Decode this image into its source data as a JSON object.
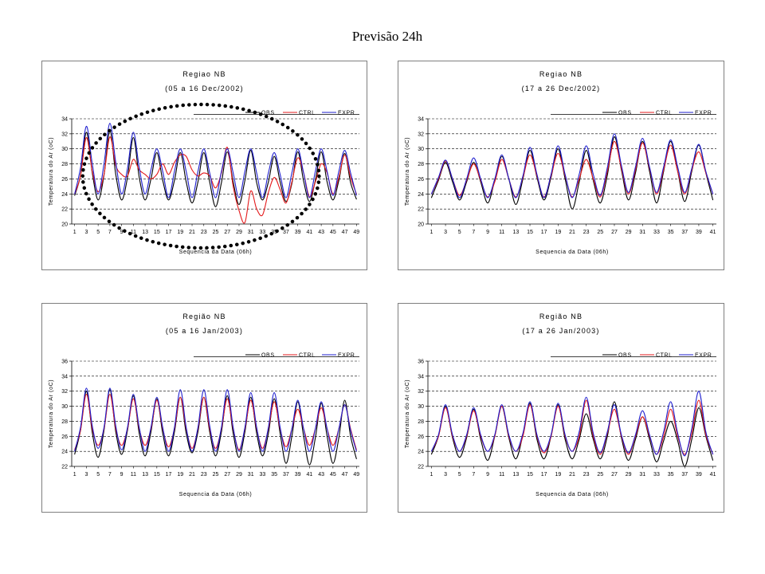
{
  "page": {
    "title": "Previsão 24h"
  },
  "colors": {
    "obs": "#000000",
    "ctrl": "#e41a1c",
    "expr": "#1f1fcf",
    "grid": "#000000",
    "highlight": "#000000"
  },
  "chart_data": [
    {
      "type": "line",
      "title": "Regiao NB",
      "subtitle": "(05 a 16 Dec/2002)",
      "xlabel": "Sequencia da Data (06h)",
      "ylabel": "Temperatura do Ar (oC)",
      "ylim": [
        20,
        34
      ],
      "yticks": [
        20,
        22,
        24,
        26,
        28,
        30,
        32,
        34
      ],
      "xticks": [
        1,
        3,
        5,
        7,
        9,
        11,
        13,
        15,
        17,
        19,
        21,
        23,
        25,
        27,
        29,
        31,
        33,
        35,
        37,
        39,
        41,
        43,
        45,
        47,
        49
      ],
      "grid": "horizontal dashed",
      "legend": [
        "OBS",
        "CTRL",
        "EXPR"
      ],
      "annotation": "dotted ellipse highlighting x 4-41",
      "series": [
        {
          "name": "OBS",
          "values": [
            23.8,
            26.5,
            32.2,
            26.8,
            23.2,
            26.5,
            32.4,
            26.6,
            23.2,
            26.2,
            31.5,
            26.2,
            23.2,
            26.0,
            29.5,
            25.8,
            23.2,
            25.8,
            29.5,
            25.6,
            22.8,
            25.6,
            29.5,
            25.6,
            22.3,
            25.5,
            29.6,
            25.6,
            22.6,
            25.8,
            29.8,
            25.5,
            23.2,
            25.6,
            29.0,
            25.6,
            23.0,
            25.4,
            29.6,
            25.7,
            23.0,
            25.8,
            29.6,
            25.6,
            23.2,
            25.8,
            29.4,
            25.5,
            23.3
          ]
        },
        {
          "name": "CTRL",
          "values": [
            24.0,
            26.4,
            31.5,
            27.0,
            24.3,
            26.6,
            31.6,
            27.8,
            26.6,
            26.4,
            28.6,
            27.2,
            26.6,
            26.0,
            26.6,
            28.0,
            26.6,
            28.2,
            29.2,
            29.0,
            27.2,
            26.4,
            26.8,
            26.4,
            24.8,
            26.8,
            30.2,
            25.0,
            21.8,
            20.2,
            24.4,
            22.0,
            21.2,
            24.2,
            26.2,
            24.6,
            22.8,
            25.6,
            28.8,
            26.8,
            23.6,
            25.6,
            28.0,
            26.8,
            24.0,
            26.2,
            29.2,
            26.2,
            24.0
          ]
        },
        {
          "name": "EXPR",
          "values": [
            24.0,
            27.5,
            33.0,
            28.0,
            24.0,
            28.0,
            33.4,
            28.2,
            24.0,
            27.4,
            32.2,
            27.5,
            24.0,
            27.2,
            30.0,
            27.0,
            23.5,
            27.0,
            30.0,
            27.0,
            23.5,
            27.0,
            30.0,
            26.8,
            23.5,
            27.0,
            30.0,
            26.8,
            23.5,
            27.0,
            30.0,
            26.8,
            23.5,
            26.8,
            29.5,
            26.6,
            23.5,
            26.8,
            30.0,
            26.8,
            23.5,
            27.0,
            30.0,
            27.0,
            23.8,
            27.0,
            29.8,
            26.8,
            23.8
          ]
        }
      ]
    },
    {
      "type": "line",
      "title": "Regiao NB",
      "subtitle": "(17 a 26 Dec/2002)",
      "xlabel": "Sequencia da Data (06h)",
      "ylabel": "Temperatura do Ar (oC)",
      "ylim": [
        20,
        34
      ],
      "yticks": [
        20,
        22,
        24,
        26,
        28,
        30,
        32,
        34
      ],
      "xticks": [
        1,
        3,
        5,
        7,
        9,
        11,
        13,
        15,
        17,
        19,
        21,
        23,
        25,
        27,
        29,
        31,
        33,
        35,
        37,
        39,
        41
      ],
      "grid": "horizontal dashed",
      "legend": [
        "OBS",
        "CTRL",
        "EXPR"
      ],
      "series": [
        {
          "name": "OBS",
          "values": [
            23.5,
            25.8,
            28.2,
            25.6,
            23.2,
            25.6,
            28.2,
            25.6,
            22.8,
            25.8,
            29.0,
            26.0,
            22.6,
            26.0,
            29.8,
            26.2,
            23.2,
            26.2,
            30.0,
            26.0,
            22.0,
            25.6,
            29.8,
            25.8,
            22.8,
            26.5,
            31.6,
            27.2,
            23.2,
            26.8,
            31.0,
            27.0,
            22.8,
            27.0,
            31.0,
            27.0,
            23.0,
            27.0,
            30.5,
            26.8,
            23.2
          ]
        },
        {
          "name": "CTRL",
          "values": [
            24.0,
            26.0,
            28.4,
            26.0,
            23.8,
            25.8,
            28.0,
            25.8,
            23.6,
            25.6,
            28.6,
            26.0,
            23.6,
            26.2,
            29.2,
            26.4,
            23.6,
            26.4,
            29.4,
            26.4,
            23.6,
            26.0,
            28.6,
            26.0,
            23.6,
            27.0,
            31.0,
            27.4,
            24.0,
            27.2,
            30.8,
            27.4,
            24.0,
            27.2,
            30.5,
            27.0,
            24.0,
            27.2,
            29.6,
            26.8,
            24.0
          ]
        },
        {
          "name": "EXPR",
          "values": [
            24.0,
            26.2,
            28.5,
            26.0,
            23.5,
            26.0,
            28.8,
            26.0,
            23.5,
            26.0,
            29.2,
            26.0,
            23.5,
            26.4,
            30.2,
            26.6,
            23.5,
            26.6,
            30.4,
            26.6,
            23.5,
            26.6,
            30.4,
            26.6,
            23.8,
            27.5,
            32.0,
            27.8,
            24.2,
            27.6,
            31.4,
            27.6,
            24.2,
            27.6,
            31.2,
            27.6,
            24.2,
            27.4,
            30.6,
            27.0,
            24.0
          ]
        }
      ]
    },
    {
      "type": "line",
      "title": "Região NB",
      "subtitle": "(05 a 16 Jan/2003)",
      "xlabel": "Sequencia da Data (06h)",
      "ylabel": "Temperatura do Ar (oC)",
      "ylim": [
        22,
        36
      ],
      "yticks": [
        22,
        24,
        26,
        28,
        30,
        32,
        34,
        36
      ],
      "xticks": [
        1,
        3,
        5,
        7,
        9,
        11,
        13,
        15,
        17,
        19,
        21,
        23,
        25,
        27,
        29,
        31,
        33,
        35,
        37,
        39,
        41,
        43,
        45,
        47,
        49
      ],
      "grid": "horizontal dashed",
      "legend": [
        "OBS",
        "CTRL",
        "EXPR"
      ],
      "series": [
        {
          "name": "OBS",
          "values": [
            23.6,
            26.8,
            32.0,
            26.5,
            23.2,
            26.8,
            32.2,
            26.6,
            23.6,
            26.8,
            31.4,
            26.4,
            23.4,
            26.6,
            31.0,
            26.4,
            23.4,
            26.6,
            31.2,
            26.4,
            23.8,
            26.6,
            31.2,
            26.6,
            23.4,
            26.6,
            31.4,
            26.4,
            23.2,
            26.6,
            31.2,
            26.4,
            23.4,
            26.4,
            31.0,
            26.4,
            22.4,
            26.0,
            30.6,
            26.0,
            22.2,
            25.8,
            30.4,
            26.0,
            22.4,
            25.8,
            30.8,
            26.0,
            23.0
          ]
        },
        {
          "name": "CTRL",
          "values": [
            24.2,
            26.8,
            31.6,
            27.0,
            24.8,
            27.0,
            31.6,
            27.0,
            24.8,
            27.0,
            31.0,
            27.0,
            24.8,
            27.0,
            30.8,
            27.0,
            24.6,
            27.0,
            31.2,
            27.0,
            24.4,
            27.0,
            31.2,
            27.0,
            24.4,
            27.0,
            31.0,
            27.0,
            24.2,
            27.0,
            30.8,
            27.0,
            24.4,
            27.0,
            30.6,
            27.0,
            24.6,
            27.0,
            29.6,
            27.0,
            24.8,
            27.0,
            29.8,
            27.0,
            24.8,
            27.0,
            30.2,
            27.0,
            24.2
          ]
        },
        {
          "name": "EXPR",
          "values": [
            24.0,
            27.2,
            32.4,
            27.4,
            24.4,
            27.2,
            32.4,
            27.4,
            24.2,
            27.2,
            31.6,
            27.2,
            24.0,
            27.2,
            31.2,
            27.2,
            24.0,
            27.2,
            32.2,
            27.2,
            24.0,
            27.2,
            32.2,
            27.4,
            24.0,
            27.2,
            32.2,
            27.2,
            24.0,
            27.2,
            31.8,
            27.2,
            24.0,
            27.2,
            31.8,
            27.2,
            24.0,
            27.0,
            30.8,
            27.0,
            24.0,
            27.0,
            30.6,
            27.0,
            24.0,
            27.0,
            30.2,
            26.8,
            24.0
          ]
        }
      ]
    },
    {
      "type": "line",
      "title": "Região NB",
      "subtitle": "(17 a 26 Jan/2003)",
      "xlabel": "Sequencia da Data (06h)",
      "ylabel": "Temperatura do Ar (oC)",
      "ylim": [
        22,
        36
      ],
      "yticks": [
        22,
        24,
        26,
        28,
        30,
        32,
        34,
        36
      ],
      "xticks": [
        1,
        3,
        5,
        7,
        9,
        11,
        13,
        15,
        17,
        19,
        21,
        23,
        25,
        27,
        29,
        31,
        33,
        35,
        37,
        39,
        41
      ],
      "grid": "horizontal dashed",
      "legend": [
        "OBS",
        "CTRL",
        "EXPR"
      ],
      "series": [
        {
          "name": "OBS",
          "values": [
            23.6,
            26.0,
            30.0,
            25.8,
            23.2,
            25.8,
            29.6,
            25.6,
            22.8,
            26.0,
            30.0,
            25.8,
            23.0,
            26.2,
            30.4,
            25.6,
            23.0,
            26.0,
            30.2,
            25.6,
            23.0,
            25.6,
            29.0,
            25.6,
            23.0,
            26.0,
            30.6,
            25.8,
            22.8,
            25.6,
            28.6,
            25.6,
            22.6,
            25.4,
            28.0,
            25.4,
            22.0,
            25.6,
            29.8,
            26.0,
            22.8
          ]
        },
        {
          "name": "CTRL",
          "values": [
            24.0,
            26.0,
            29.8,
            26.0,
            24.0,
            26.0,
            29.4,
            26.0,
            24.0,
            26.0,
            30.0,
            26.0,
            24.0,
            26.0,
            30.2,
            26.0,
            23.8,
            26.0,
            30.0,
            26.0,
            24.0,
            26.0,
            30.8,
            26.0,
            23.6,
            26.4,
            29.6,
            26.0,
            23.6,
            26.0,
            28.6,
            26.0,
            23.6,
            26.0,
            29.6,
            26.0,
            23.6,
            26.4,
            30.8,
            26.2,
            23.6
          ]
        },
        {
          "name": "EXPR",
          "values": [
            24.0,
            26.2,
            30.2,
            26.2,
            24.0,
            26.2,
            29.8,
            26.2,
            24.0,
            26.2,
            30.2,
            26.2,
            24.0,
            26.4,
            30.6,
            26.2,
            24.0,
            26.2,
            30.4,
            26.2,
            24.0,
            26.6,
            31.2,
            26.4,
            23.8,
            26.6,
            30.2,
            26.2,
            23.8,
            26.2,
            29.4,
            26.2,
            23.6,
            26.6,
            30.6,
            26.4,
            23.4,
            27.0,
            32.0,
            26.6,
            23.6
          ]
        }
      ]
    }
  ]
}
